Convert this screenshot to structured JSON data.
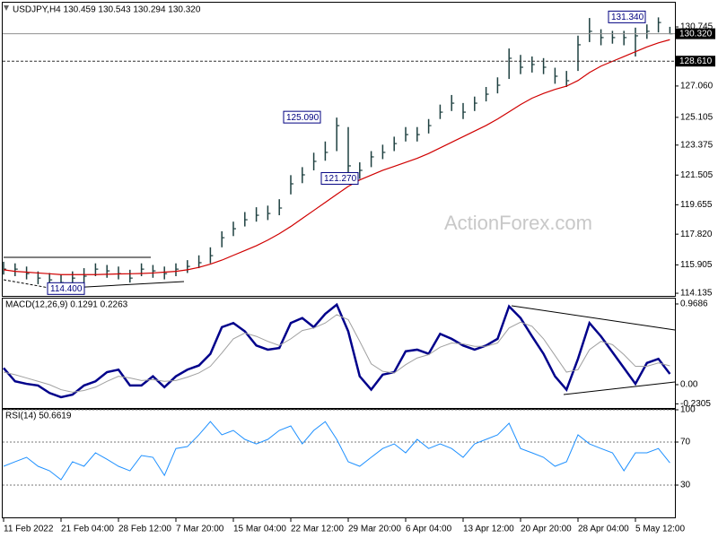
{
  "chart_data": [
    {
      "type": "ohlc",
      "title": "USDJPY,H4  130.459 130.543 130.294 130.320",
      "watermark": "ActionForex.com",
      "color": "#1e4040",
      "ma_color": "#d00000",
      "high": [
        116.1,
        116.0,
        115.8,
        115.5,
        115.4,
        115.3,
        115.5,
        115.7,
        116.0,
        115.9,
        115.8,
        115.6,
        116.0,
        115.9,
        115.8,
        116.0,
        116.2,
        116.5,
        117.0,
        118.0,
        118.6,
        119.2,
        119.5,
        119.6,
        120.0,
        121.5,
        122.0,
        122.9,
        123.6,
        125.09,
        124.5,
        122.3,
        123.0,
        123.4,
        123.9,
        124.5,
        124.5,
        125.0,
        125.9,
        126.5,
        126.0,
        126.4,
        127.0,
        127.6,
        129.4,
        129.0,
        128.9,
        128.8,
        128.2,
        128.0,
        130.2,
        131.3,
        130.6,
        130.5,
        130.5,
        130.7,
        130.9,
        131.34,
        130.75
      ],
      "low": [
        115.3,
        115.2,
        115.0,
        114.7,
        114.6,
        114.4,
        114.7,
        114.8,
        115.2,
        115.1,
        115.0,
        114.8,
        115.2,
        115.1,
        115.0,
        115.2,
        115.4,
        115.7,
        116.0,
        117.0,
        117.7,
        118.3,
        118.6,
        118.7,
        119.0,
        120.3,
        121.0,
        121.8,
        122.4,
        123.0,
        121.6,
        121.27,
        122.0,
        122.5,
        123.0,
        123.6,
        123.6,
        124.1,
        125.0,
        125.5,
        125.0,
        125.5,
        126.1,
        126.6,
        127.5,
        127.8,
        127.9,
        127.8,
        127.2,
        127.0,
        128.0,
        129.8,
        129.6,
        129.7,
        129.6,
        128.9,
        130.0,
        130.4,
        130.29
      ],
      "close": [
        115.64,
        115.64,
        115.36,
        115.08,
        114.97,
        114.8,
        115.08,
        115.2,
        115.64,
        115.53,
        115.36,
        115.08,
        115.64,
        115.53,
        115.36,
        115.64,
        115.81,
        116.04,
        116.48,
        117.6,
        118.16,
        118.72,
        119.0,
        119.11,
        119.45,
        120.96,
        121.52,
        122.36,
        122.92,
        124.59,
        122.08,
        121.8,
        122.64,
        122.92,
        123.47,
        124.03,
        124.03,
        124.59,
        125.43,
        125.99,
        125.43,
        125.99,
        126.55,
        127.11,
        128.79,
        128.23,
        128.4,
        128.23,
        127.67,
        127.39,
        129.63,
        130.47,
        130.08,
        130.08,
        130.08,
        130.19,
        130.47,
        131.02,
        130.32
      ],
      "ma_values": [
        115.6,
        115.5,
        115.45,
        115.4,
        115.35,
        115.3,
        115.3,
        115.3,
        115.3,
        115.32,
        115.34,
        115.35,
        115.37,
        115.4,
        115.45,
        115.5,
        115.6,
        115.75,
        115.95,
        116.2,
        116.5,
        116.8,
        117.1,
        117.45,
        117.85,
        118.3,
        118.8,
        119.3,
        119.8,
        120.3,
        120.8,
        121.2,
        121.5,
        121.8,
        122.05,
        122.3,
        122.55,
        122.85,
        123.2,
        123.55,
        123.9,
        124.25,
        124.6,
        125.0,
        125.45,
        125.9,
        126.3,
        126.6,
        126.85,
        127.05,
        127.4,
        127.9,
        128.3,
        128.6,
        128.9,
        129.2,
        129.5,
        129.75,
        129.95
      ],
      "ylim": [
        113.97,
        132.2
      ],
      "yticks": [
        130.745,
        {
          "value": 127.06,
          "label": "127.060"
        },
        125.105,
        123.375,
        121.505,
        119.655,
        {
          "value": 117.82,
          "label": "117.820"
        },
        115.905,
        114.135
      ],
      "levels": [
        {
          "value": 130.32,
          "label": "130.320",
          "style": "solid"
        },
        {
          "value": 128.61,
          "label": "128.610",
          "style": "dashed"
        }
      ],
      "annotations": [
        {
          "value": 131.34,
          "label": "131.340"
        },
        {
          "value": 125.09,
          "label": "125.090"
        },
        {
          "value": 121.27,
          "label": "121.270"
        },
        {
          "value": 114.4,
          "label": "114.400"
        }
      ]
    },
    {
      "type": "line",
      "title": "MACD(12,26,9) 0.1291 0.2263",
      "grid": false,
      "series": [
        {
          "color": "#00008b",
          "width": 2.5,
          "values": [
            0.2,
            0.04,
            0.01,
            -0.01,
            -0.1,
            -0.15,
            -0.12,
            -0.01,
            0.04,
            0.15,
            0.18,
            -0.01,
            -0.01,
            0.1,
            -0.03,
            0.1,
            0.18,
            0.23,
            0.37,
            0.69,
            0.74,
            0.64,
            0.47,
            0.42,
            0.44,
            0.74,
            0.8,
            0.69,
            0.85,
            0.96,
            0.64,
            0.1,
            -0.06,
            0.12,
            0.15,
            0.4,
            0.42,
            0.37,
            0.61,
            0.55,
            0.47,
            0.42,
            0.47,
            0.55,
            0.94,
            0.8,
            0.58,
            0.37,
            0.1,
            -0.06,
            0.31,
            0.74,
            0.58,
            0.39,
            0.2,
            0.01,
            0.26,
            0.31,
            0.1291
          ]
        },
        {
          "color": "#a0a0a0",
          "width": 1,
          "values": [
            0.15,
            0.12,
            0.08,
            0.04,
            0.0,
            -0.06,
            -0.09,
            -0.07,
            -0.03,
            0.04,
            0.1,
            0.08,
            0.05,
            0.06,
            0.04,
            0.05,
            0.09,
            0.14,
            0.22,
            0.38,
            0.55,
            0.62,
            0.58,
            0.52,
            0.47,
            0.55,
            0.65,
            0.68,
            0.74,
            0.84,
            0.78,
            0.52,
            0.25,
            0.16,
            0.14,
            0.24,
            0.32,
            0.36,
            0.45,
            0.5,
            0.49,
            0.46,
            0.46,
            0.5,
            0.68,
            0.75,
            0.7,
            0.55,
            0.35,
            0.15,
            0.18,
            0.42,
            0.52,
            0.48,
            0.36,
            0.22,
            0.22,
            0.26,
            0.2263
          ]
        }
      ],
      "ylim": [
        -0.28,
        1.033
      ],
      "yticks": [
        0.9686,
        {
          "value": 0,
          "label": "0.00"
        },
        -0.2305
      ]
    },
    {
      "type": "line",
      "title": "RSI(14) 50.6619",
      "grid": true,
      "series": [
        {
          "color": "#1e90ff",
          "width": 1,
          "values": [
            47.5,
            51.7,
            55.8,
            47.5,
            43.3,
            35,
            51.7,
            47.5,
            60,
            54,
            47.5,
            43.3,
            57.5,
            55.8,
            39,
            64,
            65.8,
            76.7,
            89,
            76.7,
            80.8,
            72.5,
            68.3,
            72.5,
            80.8,
            85,
            68.3,
            80.8,
            89,
            72.5,
            51.7,
            47.5,
            55.8,
            64,
            68.3,
            60,
            72.5,
            64,
            68.3,
            64,
            55.8,
            68.3,
            72.5,
            76.7,
            87.5,
            64,
            60,
            55.8,
            47.5,
            51.7,
            76.7,
            68.3,
            64,
            60,
            43.3,
            60,
            60,
            64,
            50.6619
          ]
        }
      ],
      "ylim": [
        0,
        100
      ],
      "yticks": [
        100,
        70,
        30
      ],
      "categories": [
        "11 Feb 2022",
        null,
        null,
        null,
        null,
        "21 Feb 04:00",
        null,
        null,
        null,
        null,
        "28 Feb 12:00",
        null,
        null,
        null,
        null,
        "7 Mar 20:00",
        null,
        null,
        null,
        null,
        "15 Mar 04:00",
        null,
        null,
        null,
        null,
        "22 Mar 12:00",
        null,
        null,
        null,
        null,
        "29 Mar 20:00",
        null,
        null,
        null,
        null,
        "6 Apr 04:00",
        null,
        null,
        null,
        null,
        "13 Apr 12:00",
        null,
        null,
        null,
        null,
        "20 Apr 20:00",
        null,
        null,
        null,
        null,
        "28 Apr 04:00",
        null,
        null,
        null,
        null,
        "5 May 12:00",
        null,
        null,
        null
      ]
    }
  ]
}
